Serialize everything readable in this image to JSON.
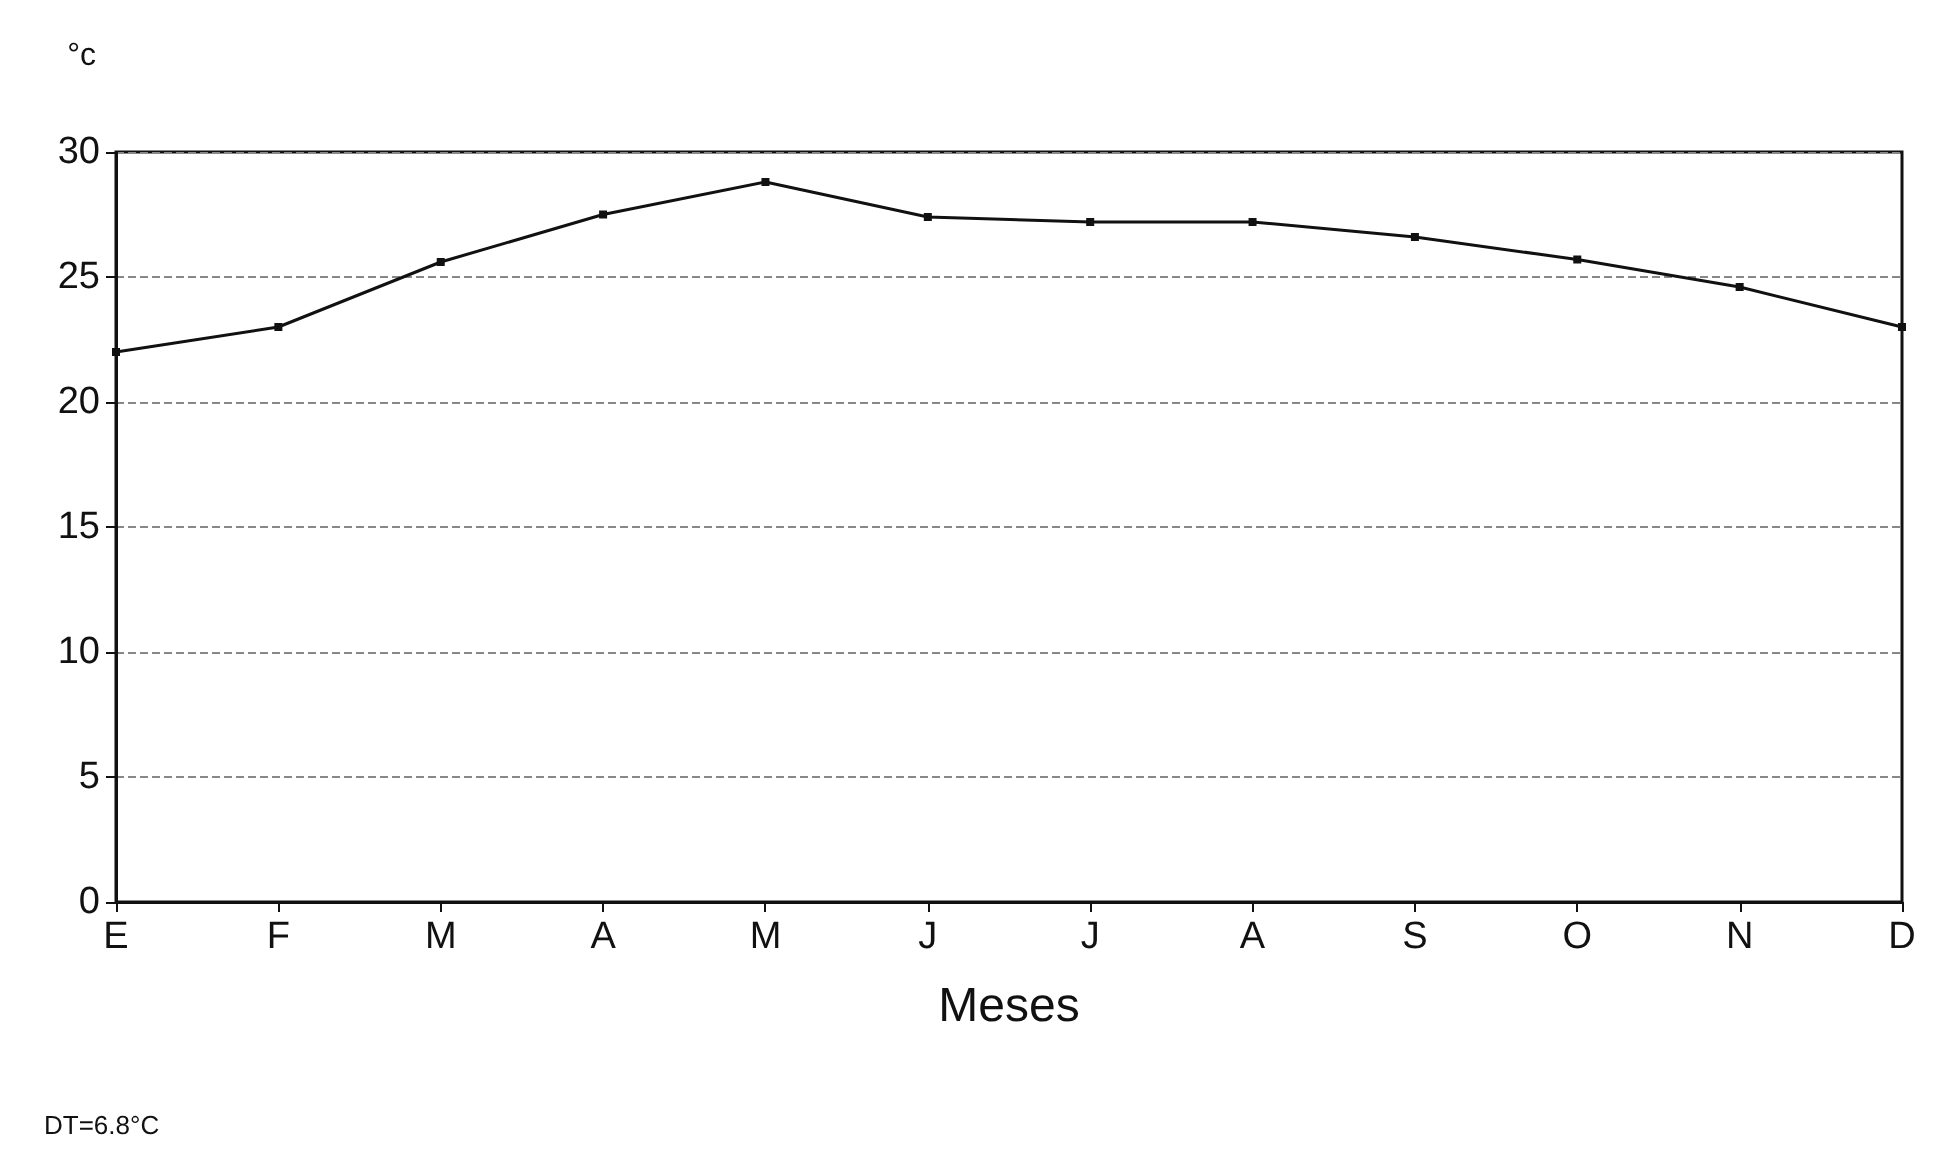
{
  "chart_data": {
    "type": "line",
    "ylabel": "°c",
    "xlabel": "Meses",
    "annotations": [
      "DT=6.8°C"
    ],
    "categories": [
      "E",
      "F",
      "M",
      "A",
      "M",
      "J",
      "J",
      "A",
      "S",
      "O",
      "N",
      "D"
    ],
    "values": [
      22,
      23,
      25.6,
      27.5,
      28.8,
      27.4,
      27.2,
      27.2,
      26.6,
      25.7,
      24.6,
      23
    ],
    "color": "#111111",
    "ylim": [
      0,
      30
    ],
    "yticks": [
      0,
      5,
      10,
      15,
      20,
      25,
      30
    ],
    "grid": "y",
    "marker": "square",
    "line_style": "solid"
  }
}
